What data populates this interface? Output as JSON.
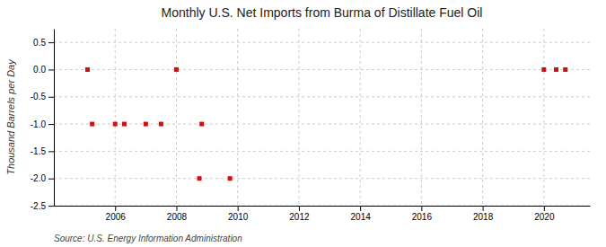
{
  "chart_data": {
    "type": "scatter",
    "title": "Monthly U.S. Net Imports from Burma of Distillate Fuel Oil",
    "ylabel": "Thousand Barrels per Day",
    "annotations": [
      "Source: U.S. Energy Information Administration"
    ],
    "x": [
      2005.1,
      2005.25,
      2006.0,
      2006.3,
      2007.0,
      2007.5,
      2008.0,
      2008.75,
      2008.83,
      2009.75,
      2020.0,
      2020.4,
      2020.7
    ],
    "values": [
      0.0,
      -1.0,
      -1.0,
      -1.0,
      -1.0,
      -1.0,
      0.0,
      -2.0,
      -1.0,
      -2.0,
      0.0,
      0.0,
      0.0
    ],
    "color": "#cc1111",
    "marker": "square",
    "xlim": [
      2004.0,
      2021.5
    ],
    "xticks": [
      2006,
      2008,
      2010,
      2012,
      2014,
      2016,
      2018,
      2020
    ],
    "ylim": [
      -2.5,
      0.75
    ],
    "yticks": [
      0.5,
      {
        "value": 0.0,
        "label": "0.0"
      },
      -0.5,
      {
        "value": -1.0,
        "label": "-1.0"
      },
      -1.5,
      {
        "value": -2.0,
        "label": "-2.0"
      },
      -2.5
    ],
    "grid": true
  }
}
